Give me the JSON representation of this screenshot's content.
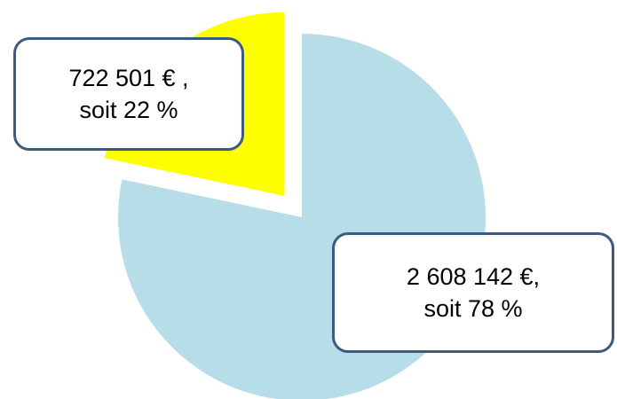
{
  "chart_data": {
    "type": "pie",
    "categories": [
      null,
      null
    ],
    "values": [
      2608142,
      722501
    ],
    "value_labels": [
      [
        "2 608 142 €,",
        "soit 78 %"
      ],
      [
        "722 501 € ,",
        "soit 22 %"
      ]
    ],
    "colors": [
      "#b7dde8",
      "#ffff00"
    ],
    "explode": [
      false,
      true
    ]
  }
}
